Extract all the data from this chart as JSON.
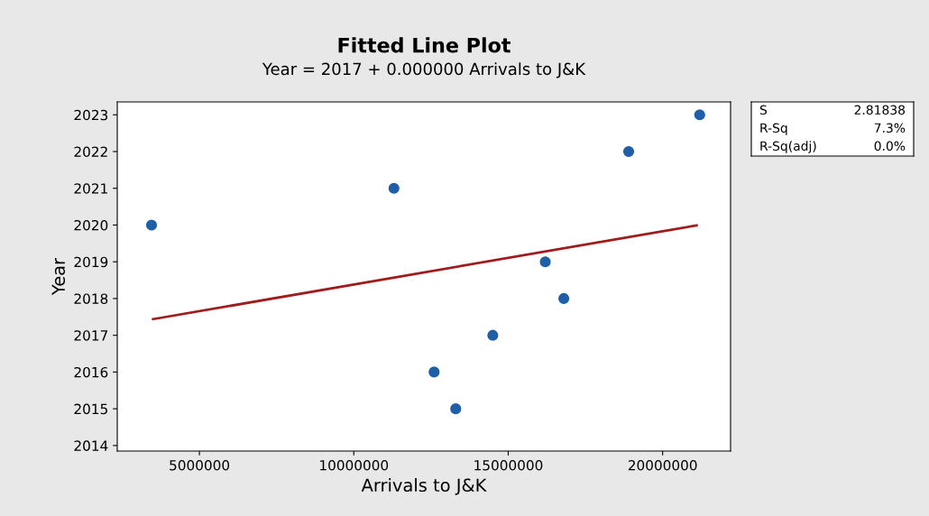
{
  "chart_data": {
    "type": "scatter",
    "title": "Fitted Line Plot",
    "subtitle": "Year = 2017 + 0.000000 Arrivals to J&K",
    "xlabel": "Arrivals to J&K",
    "ylabel": "Year",
    "series": [
      {
        "marker": "circle",
        "color": "#1f5fa8",
        "x": [
          3450000,
          11300000,
          12600000,
          13300000,
          14500000,
          16200000,
          16800000,
          18900000,
          21200000
        ],
        "values": [
          2020,
          2021,
          2016,
          2015,
          2017,
          2019,
          2018,
          2022,
          2023
        ]
      },
      {
        "type": "line",
        "marker": "none",
        "color": "#a01c1c",
        "x": [
          3500000,
          21100000
        ],
        "values": [
          2017.44,
          2019.99
        ]
      }
    ],
    "xlim": [
      2340000,
      22200000
    ],
    "xticks": [
      5000000,
      10000000,
      15000000,
      20000000
    ],
    "ylim": [
      2013.85,
      2023.35
    ],
    "yticks": [
      2014,
      2015,
      2016,
      2017,
      2018,
      2019,
      2020,
      2021,
      2022,
      2023
    ],
    "grid": false,
    "annotations": [
      "S",
      "2.81838",
      "R-Sq",
      "7.3%",
      "R-Sq(adj)",
      "0.0%"
    ]
  }
}
